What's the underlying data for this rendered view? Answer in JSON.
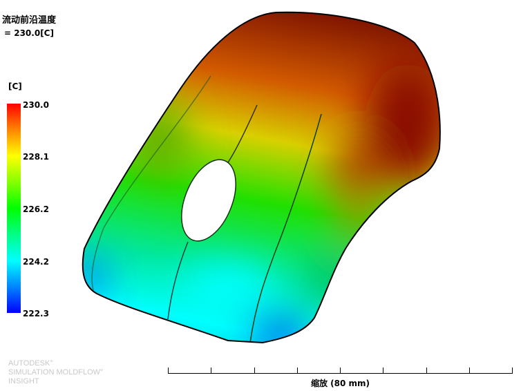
{
  "result": {
    "title": "流动前沿温度",
    "value": "= 230.0[C]"
  },
  "legend": {
    "unit": "[C]",
    "labels": [
      "230.0",
      "228.1",
      "226.2",
      "224.2",
      "222.3"
    ],
    "max": 230.0,
    "min": 222.3,
    "colors": [
      "#ff0000",
      "#ffff00",
      "#00ff00",
      "#00ffff",
      "#0000ff"
    ]
  },
  "scale": {
    "label": "缩放 (80 mm)"
  },
  "brand": {
    "line1": "AUTODESK°",
    "line2": "SIMULATION MOLDFLOW°",
    "line3": "INSIGHT"
  }
}
